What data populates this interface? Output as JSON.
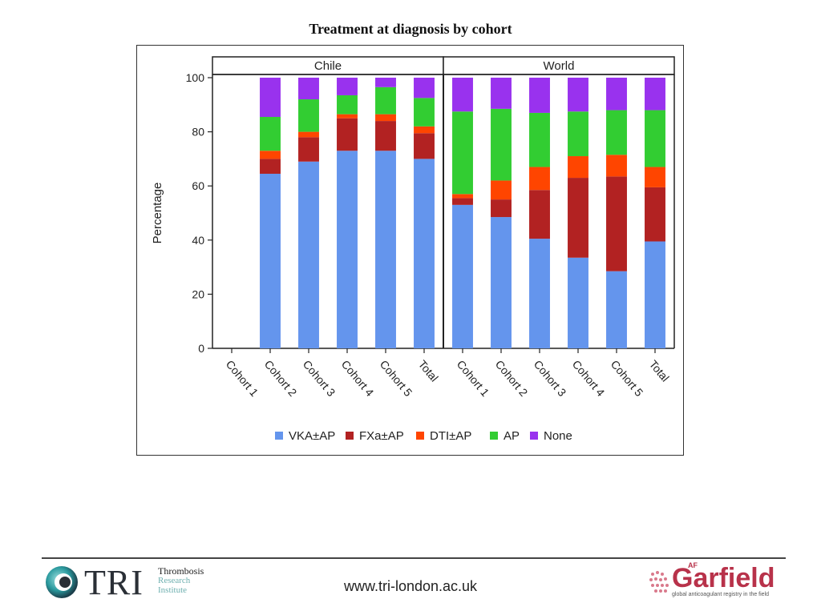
{
  "slide": {
    "title": "Treatment at diagnosis by cohort"
  },
  "footer": {
    "left_logo_text": "TRI",
    "left_logo_sub": [
      "Thrombosis",
      "Research",
      "Institute"
    ],
    "url": "www.tri-london.ac.uk",
    "right_logo_text": "Garfield",
    "right_logo_prefix": "AF",
    "right_logo_tagline": "global anticoagulant registry in the field"
  },
  "chart_data": {
    "type": "bar",
    "stacked": true,
    "title": "Treatment at diagnosis by cohort",
    "ylabel": "Percentage",
    "xlabel": "",
    "ylim": [
      0,
      100
    ],
    "yticks": [
      0,
      20,
      40,
      60,
      80,
      100
    ],
    "grid": false,
    "legend_position": "bottom",
    "categories": [
      "Cohort 1",
      "Cohort 2",
      "Cohort 3",
      "Cohort 4",
      "Cohort 5",
      "Total"
    ],
    "panels": [
      {
        "name": "Chile",
        "series": [
          {
            "name": "VKA±AP",
            "color": "#6495ED",
            "values": [
              0,
              64.5,
              69,
              73,
              73,
              70
            ]
          },
          {
            "name": "FXa±AP",
            "color": "#B22222",
            "values": [
              0,
              5.5,
              9,
              12,
              11,
              9.5
            ]
          },
          {
            "name": "DTI±AP",
            "color": "#FF4500",
            "values": [
              0,
              3,
              2,
              1.5,
              2.5,
              2.5
            ]
          },
          {
            "name": "AP",
            "color": "#32CD32",
            "values": [
              0,
              12.5,
              12,
              7,
              10,
              10.5
            ]
          },
          {
            "name": "None",
            "color": "#9932EE",
            "values": [
              0,
              14.5,
              8,
              6.5,
              3.5,
              7.5
            ]
          }
        ]
      },
      {
        "name": "World",
        "series": [
          {
            "name": "VKA±AP",
            "color": "#6495ED",
            "values": [
              53,
              48.5,
              40.5,
              33.5,
              28.5,
              39.5
            ]
          },
          {
            "name": "FXa±AP",
            "color": "#B22222",
            "values": [
              2.5,
              6.5,
              18,
              29.5,
              35,
              20
            ]
          },
          {
            "name": "DTI±AP",
            "color": "#FF4500",
            "values": [
              1.5,
              7,
              8.5,
              8,
              8,
              7.5
            ]
          },
          {
            "name": "AP",
            "color": "#32CD32",
            "values": [
              30.5,
              26.5,
              20,
              16.5,
              16.5,
              21
            ]
          },
          {
            "name": "None",
            "color": "#9932EE",
            "values": [
              12.5,
              11.5,
              13,
              12.5,
              12,
              12
            ]
          }
        ]
      }
    ]
  }
}
